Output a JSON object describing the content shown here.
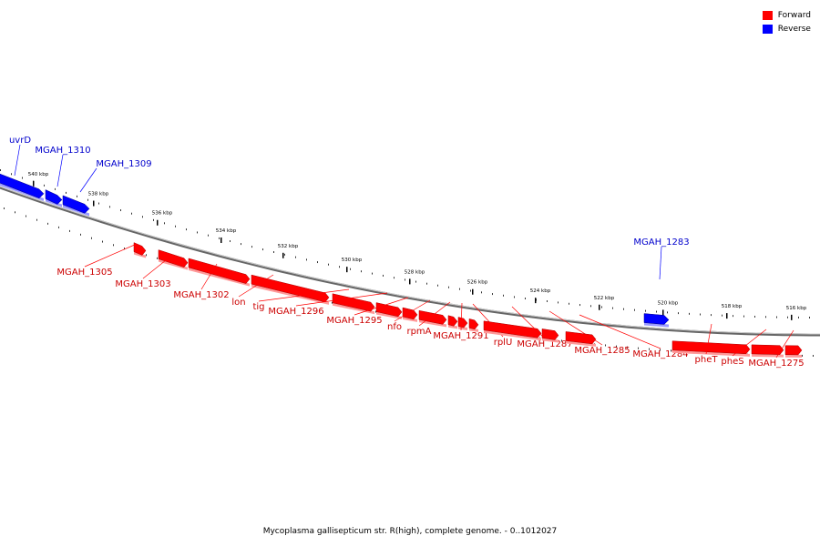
{
  "colors": {
    "forward": "#ff0000",
    "reverse": "#0000ff",
    "forward_label": "#cc0000",
    "reverse_label": "#0000cc",
    "backbone": "#999999"
  },
  "legend": {
    "forward_label": "Forward",
    "reverse_label": "Reverse"
  },
  "caption": "Mycoplasma gallisepticum str. R(high), complete genome. - 0..1012027",
  "ruler_labels": [
    "540 kbp",
    "538 kbp",
    "536 kbp",
    "534 kbp",
    "532 kbp",
    "530 kbp",
    "528 kbp",
    "526 kbp",
    "524 kbp",
    "522 kbp",
    "520 kbp",
    "518 kbp",
    "516 kbp"
  ],
  "reverse_genes": [
    "uvrD",
    "MGAH_1310",
    "MGAH_1309",
    "MGAH_1283"
  ],
  "forward_genes": [
    "MGAH_1305",
    "MGAH_1303",
    "MGAH_1302",
    "lon",
    "tig",
    "MGAH_1296",
    "MGAH_1295",
    "nfo",
    "rpmA",
    "MGAH_1291",
    "rplU",
    "MGAH_1287",
    "MGAH_1285",
    "MGAH_1284",
    "pheT",
    "pheS",
    "MGAH_1275"
  ]
}
